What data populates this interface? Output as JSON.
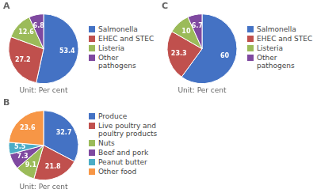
{
  "chart_data": [
    {
      "type": "pie",
      "title": "A",
      "categories": [
        "Salmonella",
        "EHEC and STEC",
        "Listeria",
        "Other pathogens"
      ],
      "values": [
        53.4,
        27.2,
        12.6,
        6.8
      ],
      "colors": [
        "#4472C4",
        "#C0504D",
        "#9BBB59",
        "#7F49A0"
      ],
      "data_labels": true,
      "legend": "right",
      "annotations": [
        "Unit: Per cent"
      ]
    },
    {
      "type": "pie",
      "title": "B",
      "categories": [
        "Produce",
        "Live poultry and\npoultry products",
        "Nuts",
        "Beef and pork",
        "Peanut butter",
        "Other food"
      ],
      "values": [
        32.7,
        21.8,
        9.1,
        7.3,
        5.5,
        23.6
      ],
      "colors": [
        "#4472C4",
        "#C0504D",
        "#9BBB59",
        "#7F49A0",
        "#4BACC6",
        "#F79646"
      ],
      "data_labels": true,
      "legend": "right",
      "annotations": [
        "Unit: Per cent"
      ]
    },
    {
      "type": "pie",
      "title": "C",
      "categories": [
        "Salmonella",
        "EHEC and STEC",
        "Listeria",
        "Other pathogens"
      ],
      "values": [
        60.0,
        23.3,
        10.0,
        6.7
      ],
      "colors": [
        "#4472C4",
        "#C0504D",
        "#9BBB59",
        "#7F49A0"
      ],
      "data_labels": true,
      "legend": "right",
      "annotations": [
        "Unit: Per cent"
      ]
    }
  ]
}
